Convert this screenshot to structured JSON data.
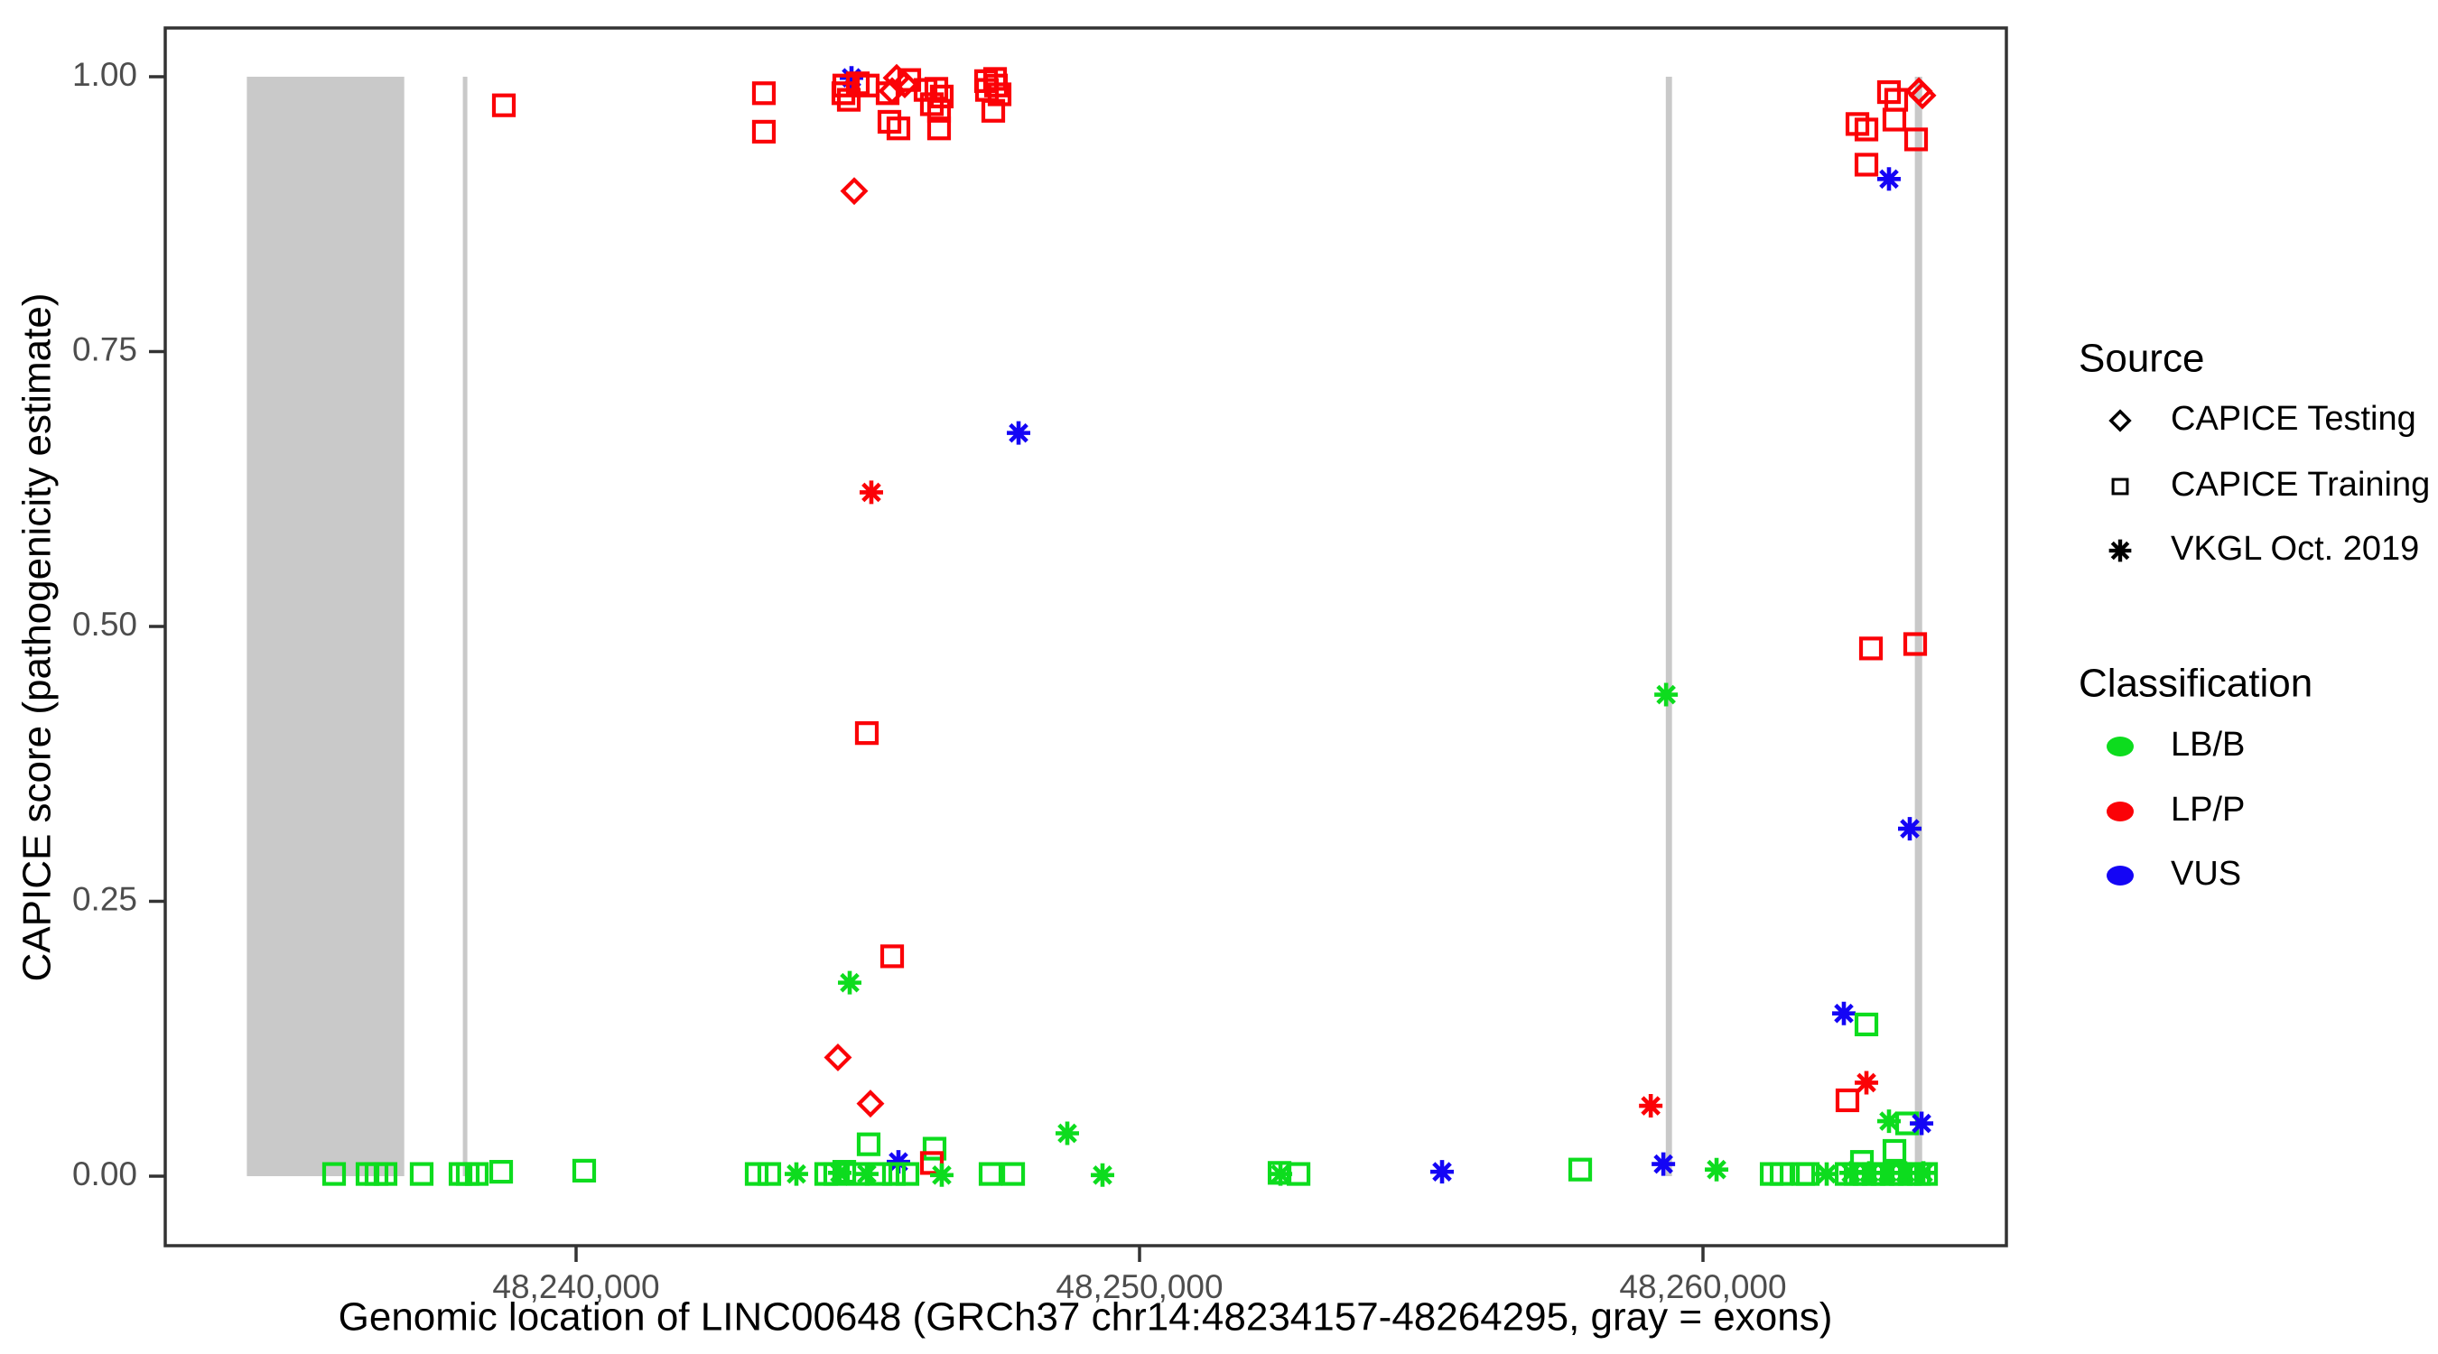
{
  "figure": {
    "background": "#ffffff"
  },
  "colors": {
    "exon_gray": "#c9c9c9",
    "axis_line": "#333333",
    "tick_label_gray": "#4d4d4d",
    "title_black": "#000000",
    "lbb_green": "#0ddc1e",
    "lpp_red": "#fb0207",
    "vus_blue": "#1405f5"
  },
  "legend": {
    "source": {
      "title": "Source",
      "items": [
        {
          "label": "CAPICE Testing",
          "marker": "diamond-icon"
        },
        {
          "label": "CAPICE Training",
          "marker": "square-icon"
        },
        {
          "label": "VKGL Oct. 2019",
          "marker": "asterisk-icon"
        }
      ]
    },
    "classification": {
      "title": "Classification",
      "items": [
        {
          "label": "LB/B",
          "color": "#0ddc1e"
        },
        {
          "label": "LP/P",
          "color": "#fb0207"
        },
        {
          "label": "VUS",
          "color": "#1405f5"
        }
      ]
    }
  },
  "chart_data": {
    "type": "scatter",
    "title": "",
    "xlabel": "Genomic location of LINC00648 (GRCh37 chr14:48234157-48264295, gray = exons)",
    "ylabel": "CAPICE score (pathogenicity estimate)",
    "x_ticks": [
      {
        "bp": 48240000,
        "label": "48,240,000"
      },
      {
        "bp": 48250000,
        "label": "48,250,000"
      },
      {
        "bp": 48260000,
        "label": "48,260,000"
      }
    ],
    "y_ticks": [
      {
        "v": 0.0,
        "label": "0.00"
      },
      {
        "v": 0.25,
        "label": "0.25"
      },
      {
        "v": 0.5,
        "label": "0.50"
      },
      {
        "v": 0.75,
        "label": "0.75"
      },
      {
        "v": 1.0,
        "label": "1.00"
      }
    ],
    "x_domain_bp": [
      48232700,
      48265600
    ],
    "y_domain": [
      0,
      1
    ],
    "grid": "off",
    "legend_position": "right",
    "exons_bp": [
      [
        48234157,
        48236950
      ],
      [
        48237990,
        48238060
      ],
      [
        48259340,
        48259450
      ],
      [
        48263760,
        48263890
      ]
    ],
    "points_format": [
      "bp",
      "score",
      "source_code",
      "classification_code"
    ],
    "codes": {
      "source": {
        "d": "CAPICE Testing (diamond)",
        "s": "CAPICE Training (square)",
        "a": "VKGL Oct. 2019 (asterisk)"
      },
      "classification": {
        "g": "LB/B",
        "r": "LP/P",
        "b": "VUS"
      }
    },
    "points": [
      [
        48238718,
        0.974,
        "s",
        "r"
      ],
      [
        48243333,
        0.985,
        "s",
        "r"
      ],
      [
        48243333,
        0.95,
        "s",
        "r"
      ],
      [
        48244888,
        0.999,
        "a",
        "b"
      ],
      [
        48244760,
        0.992,
        "s",
        "r"
      ],
      [
        48245000,
        0.994,
        "s",
        "r"
      ],
      [
        48245176,
        0.992,
        "s",
        "r"
      ],
      [
        48244744,
        0.985,
        "s",
        "r"
      ],
      [
        48244840,
        0.979,
        "s",
        "r"
      ],
      [
        48245689,
        0.999,
        "d",
        "r"
      ],
      [
        48245833,
        0.993,
        "d",
        "r"
      ],
      [
        48245609,
        0.987,
        "d",
        "r"
      ],
      [
        48245529,
        0.985,
        "s",
        "r"
      ],
      [
        48245913,
        0.997,
        "s",
        "r"
      ],
      [
        48245561,
        0.959,
        "s",
        "r"
      ],
      [
        48245721,
        0.953,
        "s",
        "r"
      ],
      [
        48246202,
        0.988,
        "s",
        "r"
      ],
      [
        48246394,
        0.989,
        "s",
        "r"
      ],
      [
        48246490,
        0.982,
        "s",
        "r"
      ],
      [
        48246314,
        0.975,
        "s",
        "r"
      ],
      [
        48246442,
        0.969,
        "s",
        "r"
      ],
      [
        48246442,
        0.953,
        "s",
        "r"
      ],
      [
        48247276,
        0.996,
        "s",
        "r"
      ],
      [
        48247436,
        0.998,
        "s",
        "r"
      ],
      [
        48247452,
        0.992,
        "s",
        "r"
      ],
      [
        48247292,
        0.988,
        "s",
        "r"
      ],
      [
        48247516,
        0.984,
        "s",
        "r"
      ],
      [
        48247404,
        0.969,
        "s",
        "r"
      ],
      [
        48244936,
        0.896,
        "d",
        "r"
      ],
      [
        48245240,
        0.622,
        "a",
        "r"
      ],
      [
        48247853,
        0.676,
        "a",
        "b"
      ],
      [
        48245160,
        0.403,
        "s",
        "r"
      ],
      [
        48245609,
        0.2,
        "s",
        "r"
      ],
      [
        48244856,
        0.176,
        "a",
        "g"
      ],
      [
        48244647,
        0.108,
        "d",
        "r"
      ],
      [
        48245224,
        0.066,
        "d",
        "r"
      ],
      [
        48245192,
        0.029,
        "s",
        "g"
      ],
      [
        48245721,
        0.013,
        "a",
        "b"
      ],
      [
        48246362,
        0.025,
        "s",
        "g"
      ],
      [
        48246314,
        0.012,
        "s",
        "r"
      ],
      [
        48248718,
        0.039,
        "a",
        "g"
      ],
      [
        48235705,
        0.002,
        "s",
        "g"
      ],
      [
        48236298,
        0.002,
        "s",
        "g"
      ],
      [
        48236458,
        0.002,
        "s",
        "g"
      ],
      [
        48236618,
        0.002,
        "s",
        "g"
      ],
      [
        48237259,
        0.002,
        "s",
        "g"
      ],
      [
        48237949,
        0.002,
        "s",
        "g"
      ],
      [
        48238077,
        0.002,
        "s",
        "g"
      ],
      [
        48238237,
        0.002,
        "s",
        "g"
      ],
      [
        48238670,
        0.004,
        "s",
        "g"
      ],
      [
        48240144,
        0.005,
        "s",
        "g"
      ],
      [
        48243205,
        0.002,
        "s",
        "g"
      ],
      [
        48243429,
        0.002,
        "s",
        "g"
      ],
      [
        48243910,
        0.002,
        "a",
        "g"
      ],
      [
        48244439,
        0.002,
        "s",
        "g"
      ],
      [
        48244599,
        0.002,
        "s",
        "g"
      ],
      [
        48244679,
        0.003,
        "a",
        "g"
      ],
      [
        48244760,
        0.004,
        "s",
        "g"
      ],
      [
        48245000,
        0.002,
        "s",
        "g"
      ],
      [
        48245160,
        0.002,
        "a",
        "g"
      ],
      [
        48245401,
        0.002,
        "s",
        "g"
      ],
      [
        48245641,
        0.002,
        "s",
        "g"
      ],
      [
        48245881,
        0.002,
        "s",
        "g"
      ],
      [
        48246490,
        0.001,
        "a",
        "g"
      ],
      [
        48247356,
        0.002,
        "s",
        "g"
      ],
      [
        48247757,
        0.002,
        "s",
        "g"
      ],
      [
        48249343,
        0.001,
        "a",
        "g"
      ],
      [
        48252485,
        0.003,
        "s",
        "g"
      ],
      [
        48252501,
        0.002,
        "a",
        "g"
      ],
      [
        48252822,
        0.002,
        "s",
        "g"
      ],
      [
        48255369,
        0.004,
        "a",
        "b"
      ],
      [
        48257821,
        0.006,
        "s",
        "g"
      ],
      [
        48259345,
        0.438,
        "a",
        "g"
      ],
      [
        48259073,
        0.064,
        "a",
        "r"
      ],
      [
        48259297,
        0.011,
        "a",
        "b"
      ],
      [
        48260241,
        0.006,
        "a",
        "g"
      ],
      [
        48261219,
        0.002,
        "s",
        "g"
      ],
      [
        48261395,
        0.002,
        "s",
        "g"
      ],
      [
        48261780,
        0.002,
        "s",
        "g"
      ],
      [
        48261860,
        0.002,
        "s",
        "g"
      ],
      [
        48262196,
        0.002,
        "a",
        "g"
      ],
      [
        48262549,
        0.002,
        "s",
        "g"
      ],
      [
        48262709,
        0.002,
        "s",
        "g"
      ],
      [
        48262869,
        0.002,
        "s",
        "g"
      ],
      [
        48263029,
        0.002,
        "s",
        "g"
      ],
      [
        48263190,
        0.002,
        "s",
        "g"
      ],
      [
        48263350,
        0.002,
        "s",
        "g"
      ],
      [
        48263510,
        0.002,
        "s",
        "g"
      ],
      [
        48263670,
        0.002,
        "s",
        "g"
      ],
      [
        48263831,
        0.002,
        "s",
        "g"
      ],
      [
        48263959,
        0.002,
        "s",
        "g"
      ],
      [
        48262629,
        0.003,
        "a",
        "g"
      ],
      [
        48262949,
        0.003,
        "a",
        "g"
      ],
      [
        48263270,
        0.003,
        "a",
        "g"
      ],
      [
        48263590,
        0.003,
        "a",
        "g"
      ],
      [
        48263911,
        0.003,
        "a",
        "g"
      ],
      [
        48262821,
        0.013,
        "s",
        "g"
      ],
      [
        48263398,
        0.023,
        "s",
        "g"
      ],
      [
        48262500,
        0.148,
        "a",
        "b"
      ],
      [
        48262901,
        0.138,
        "s",
        "g"
      ],
      [
        48262901,
        0.085,
        "a",
        "r"
      ],
      [
        48262564,
        0.069,
        "s",
        "r"
      ],
      [
        48263301,
        0.05,
        "a",
        "g"
      ],
      [
        48263622,
        0.048,
        "s",
        "g"
      ],
      [
        48263879,
        0.048,
        "a",
        "b"
      ],
      [
        48263670,
        0.316,
        "a",
        "b"
      ],
      [
        48262981,
        0.48,
        "s",
        "r"
      ],
      [
        48263766,
        0.484,
        "s",
        "r"
      ],
      [
        48263301,
        0.986,
        "s",
        "r"
      ],
      [
        48263429,
        0.979,
        "s",
        "r"
      ],
      [
        48263397,
        0.961,
        "s",
        "r"
      ],
      [
        48263782,
        0.943,
        "s",
        "r"
      ],
      [
        48262741,
        0.957,
        "s",
        "r"
      ],
      [
        48262901,
        0.952,
        "s",
        "r"
      ],
      [
        48262901,
        0.92,
        "s",
        "r"
      ],
      [
        48263831,
        0.987,
        "d",
        "r"
      ],
      [
        48263895,
        0.983,
        "d",
        "r"
      ],
      [
        48263301,
        0.907,
        "a",
        "b"
      ]
    ]
  }
}
